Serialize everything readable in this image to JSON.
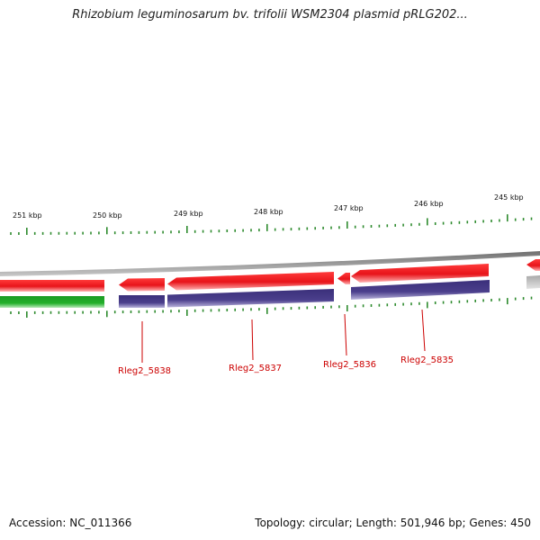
{
  "header": {
    "title": "Rhizobium leguminosarum bv. trifolii WSM2304 plasmid pRLG202..."
  },
  "footer": {
    "accession": "Accession: NC_011366",
    "summary": "Topology: circular; Length: 501,946 bp; Genes: 450"
  },
  "map": {
    "kbp_labels": [
      "251 kbp",
      "250 kbp",
      "249 kbp",
      "248 kbp",
      "247 kbp",
      "246 kbp",
      "245 kbp"
    ],
    "gene_labels": [
      "Rleg2_5838",
      "Rleg2_5837",
      "Rleg2_5836",
      "Rleg2_5835"
    ],
    "colors": {
      "tick": "#2e8b2e",
      "backbone": "#8c8c8c",
      "forward_feature": "#e8141a",
      "reverse_feature": "#e8141a",
      "cds_bar": "#4b3f8c",
      "green_bar": "#22b02a",
      "label": "#cc0000"
    }
  }
}
